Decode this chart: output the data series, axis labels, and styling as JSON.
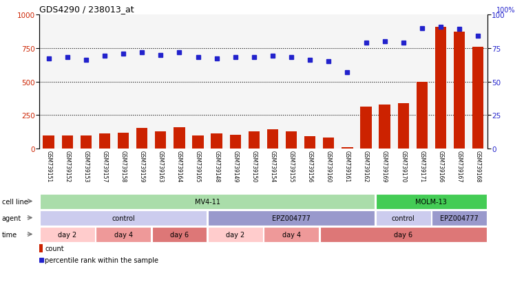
{
  "title": "GDS4290 / 238013_at",
  "samples": [
    "GSM739151",
    "GSM739152",
    "GSM739153",
    "GSM739157",
    "GSM739158",
    "GSM739159",
    "GSM739163",
    "GSM739164",
    "GSM739165",
    "GSM739148",
    "GSM739149",
    "GSM739150",
    "GSM739154",
    "GSM739155",
    "GSM739156",
    "GSM739160",
    "GSM739161",
    "GSM739162",
    "GSM739169",
    "GSM739170",
    "GSM739171",
    "GSM739166",
    "GSM739167",
    "GSM739168"
  ],
  "counts": [
    95,
    100,
    95,
    115,
    120,
    155,
    130,
    160,
    100,
    115,
    105,
    130,
    145,
    130,
    90,
    80,
    12,
    315,
    330,
    340,
    500,
    910,
    870,
    760
  ],
  "percentile_ranks": [
    67,
    68,
    66,
    69,
    71,
    72,
    70,
    72,
    68,
    67,
    68,
    68,
    69,
    68,
    66,
    65,
    57,
    79,
    80,
    79,
    90,
    91,
    89,
    84
  ],
  "ylim_left": [
    0,
    1000
  ],
  "ylim_right": [
    0,
    100
  ],
  "yticks_left": [
    0,
    250,
    500,
    750,
    1000
  ],
  "yticks_right": [
    0,
    25,
    50,
    75,
    100
  ],
  "bar_color": "#cc2200",
  "dot_color": "#2222cc",
  "bg_color": "#ffffff",
  "cell_line_spans": [
    {
      "label": "MV4-11",
      "start": 0,
      "end": 18,
      "color": "#aaddaa"
    },
    {
      "label": "MOLM-13",
      "start": 18,
      "end": 24,
      "color": "#44cc55"
    }
  ],
  "agent_spans": [
    {
      "label": "control",
      "start": 0,
      "end": 9,
      "color": "#ccccee"
    },
    {
      "label": "EPZ004777",
      "start": 9,
      "end": 18,
      "color": "#9999cc"
    },
    {
      "label": "control",
      "start": 18,
      "end": 21,
      "color": "#ccccee"
    },
    {
      "label": "EPZ004777",
      "start": 21,
      "end": 24,
      "color": "#9999cc"
    }
  ],
  "time_spans": [
    {
      "label": "day 2",
      "start": 0,
      "end": 3,
      "color": "#ffcccc"
    },
    {
      "label": "day 4",
      "start": 3,
      "end": 6,
      "color": "#ee9999"
    },
    {
      "label": "day 6",
      "start": 6,
      "end": 9,
      "color": "#dd7777"
    },
    {
      "label": "day 2",
      "start": 9,
      "end": 12,
      "color": "#ffcccc"
    },
    {
      "label": "day 4",
      "start": 12,
      "end": 15,
      "color": "#ee9999"
    },
    {
      "label": "day 6",
      "start": 15,
      "end": 24,
      "color": "#dd7777"
    }
  ]
}
